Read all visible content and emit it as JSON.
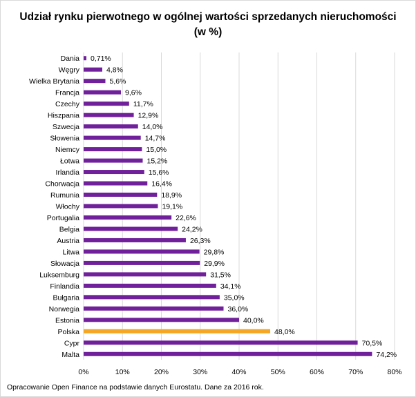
{
  "chart_data": {
    "type": "bar",
    "orientation": "horizontal",
    "title_line1": "Udział rynku pierwotnego w ogólnej wartości sprzedanych nieruchomości",
    "title_line2": "(w %)",
    "categories": [
      "Dania",
      "Węgry",
      "Wielka Brytania",
      "Francja",
      "Czechy",
      "Hiszpania",
      "Szwecja",
      "Słowenia",
      "Niemcy",
      "Łotwa",
      "Irlandia",
      "Chorwacja",
      "Rumunia",
      "Włochy",
      "Portugalia",
      "Belgia",
      "Austria",
      "Litwa",
      "Słowacja",
      "Luksemburg",
      "Finlandia",
      "Bułgaria",
      "Norwegia",
      "Estonia",
      "Polska",
      "Cypr",
      "Malta"
    ],
    "values": [
      0.71,
      4.8,
      5.6,
      9.6,
      11.7,
      12.9,
      14.0,
      14.7,
      15.0,
      15.2,
      15.6,
      16.4,
      18.9,
      19.1,
      22.6,
      24.2,
      26.3,
      29.8,
      29.9,
      31.5,
      34.1,
      35.0,
      36.0,
      40.0,
      48.0,
      70.5,
      74.2
    ],
    "value_labels": [
      "0,71%",
      "4,8%",
      "5,6%",
      "9,6%",
      "11,7%",
      "12,9%",
      "14,0%",
      "14,7%",
      "15,0%",
      "15,2%",
      "15,6%",
      "16,4%",
      "18,9%",
      "19,1%",
      "22,6%",
      "24,2%",
      "26,3%",
      "29,8%",
      "29,9%",
      "31,5%",
      "34,1%",
      "35,0%",
      "36,0%",
      "40,0%",
      "48,0%",
      "70,5%",
      "74,2%"
    ],
    "highlight_category": "Polska",
    "xlim": [
      0,
      80
    ],
    "x_ticks": [
      "0%",
      "10%",
      "20%",
      "30%",
      "40%",
      "50%",
      "60%",
      "70%",
      "80%"
    ],
    "grid": true,
    "legend": "none",
    "colors": {
      "bar": "#70209a",
      "highlight": "#f5a623",
      "grid": "#d9d9d9"
    }
  },
  "source_note": "Opracowanie Open Finance na podstawie danych Eurostatu. Dane za 2016 rok."
}
